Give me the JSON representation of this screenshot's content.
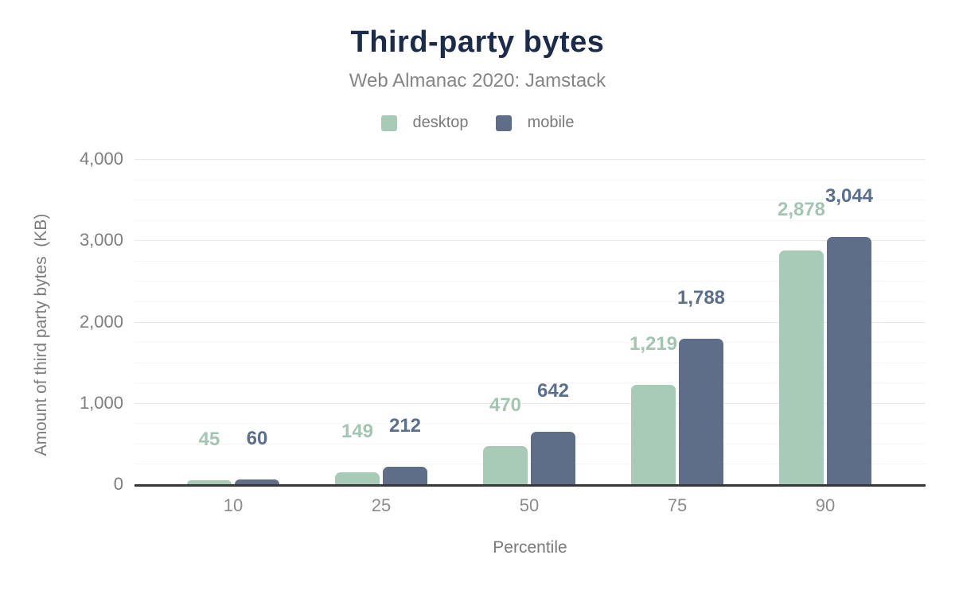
{
  "chart_data": {
    "type": "bar",
    "title": "Third-party bytes",
    "subtitle": "Web Almanac 2020: Jamstack",
    "categories": [
      "10",
      "25",
      "50",
      "75",
      "90"
    ],
    "series": [
      {
        "name": "desktop",
        "color": "#a8cbb8",
        "label_color": "#a2c6b2",
        "values": [
          45,
          149,
          470,
          1219,
          2878
        ],
        "value_labels": [
          "45",
          "149",
          "470",
          "1,219",
          "2,878"
        ]
      },
      {
        "name": "mobile",
        "color": "#5f6e88",
        "label_color": "#5a6e8e",
        "values": [
          60,
          212,
          642,
          1788,
          3044
        ],
        "value_labels": [
          "60",
          "212",
          "642",
          "1,788",
          "3,044"
        ]
      }
    ],
    "xlabel": "Percentile",
    "ylabel": "Amount of third party bytes  (KB)",
    "ylim": [
      0,
      4000
    ],
    "yticks": [
      {
        "value": 0,
        "label": "0"
      },
      {
        "value": 1000,
        "label": "1,000"
      },
      {
        "value": 2000,
        "label": "2,000"
      },
      {
        "value": 3000,
        "label": "3,000"
      },
      {
        "value": 4000,
        "label": "4,000"
      }
    ],
    "minor_grid_step": 250,
    "grid": "horizontal",
    "legend_position": "top"
  },
  "colors": {
    "title": "#1b2b4b",
    "subtitle": "#858585",
    "axis_text": "#7e7e7e",
    "axis_line": "#373737",
    "grid_major": "#e9e9e9",
    "grid_minor": "#f6f6f6",
    "background": "#ffffff"
  }
}
